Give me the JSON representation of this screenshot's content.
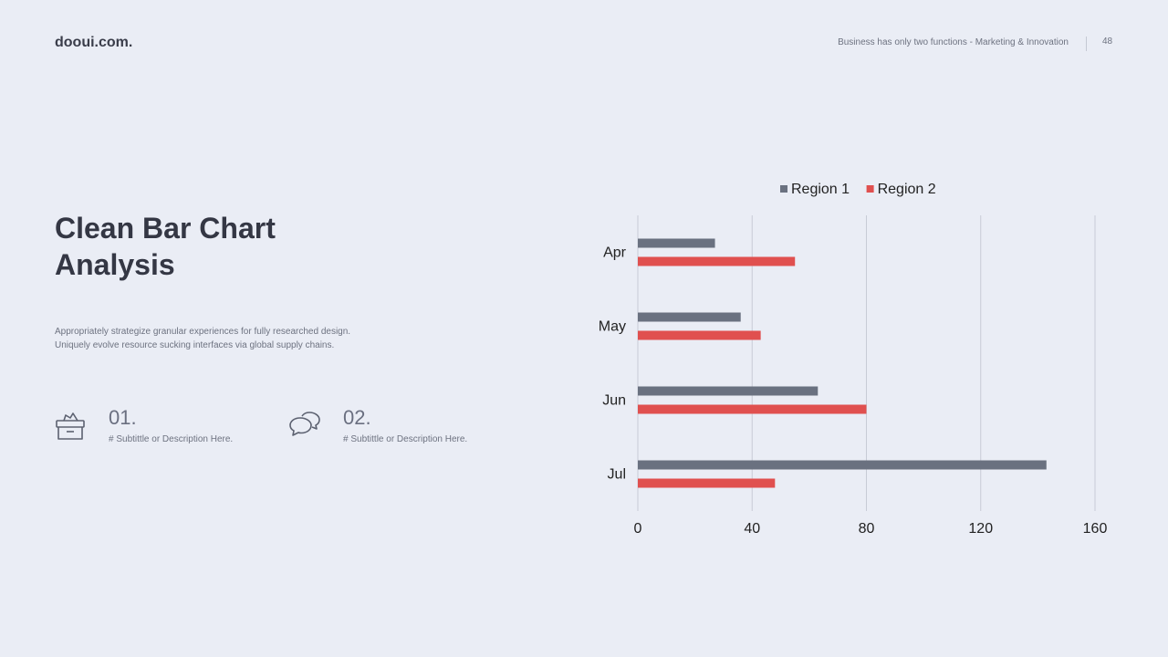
{
  "header": {
    "logo": "dooui.com.",
    "tagline": "Business has only two functions - Marketing & Innovation",
    "page_number": "48"
  },
  "main": {
    "title": "Clean Bar Chart Analysis",
    "description": [
      "Appropriately strategize granular experiences for fully researched design.",
      "Uniquely evolve resource sucking interfaces via global supply chains."
    ],
    "features": [
      {
        "number": "01.",
        "subtitle": "# Subtittle or Description Here.",
        "icon": "archive-box-icon"
      },
      {
        "number": "02.",
        "subtitle": "# Subtittle or Description Here.",
        "icon": "chat-bubbles-icon"
      }
    ]
  },
  "chart_data": {
    "type": "bar",
    "orientation": "horizontal",
    "categories": [
      "Apr",
      "May",
      "Jun",
      "Jul"
    ],
    "series": [
      {
        "name": "Region 1",
        "color": "#6a7180",
        "values": [
          27,
          36,
          63,
          143
        ]
      },
      {
        "name": "Region 2",
        "color": "#e0504f",
        "values": [
          55,
          43,
          80,
          48
        ]
      }
    ],
    "xlim": [
      0,
      160
    ],
    "x_ticks": [
      0,
      40,
      80,
      120,
      160
    ],
    "grid": true,
    "legend_position": "top"
  }
}
